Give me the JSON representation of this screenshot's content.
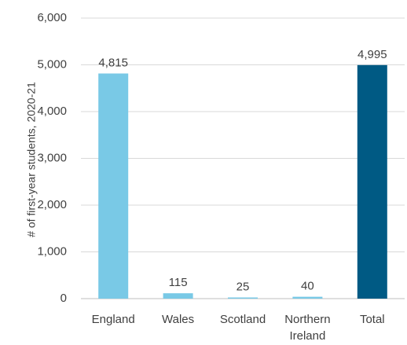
{
  "chart_data": {
    "type": "bar",
    "title": "",
    "xlabel": "",
    "ylabel": "# of first-year students, 2020-21",
    "categories": [
      [
        "England"
      ],
      [
        "Wales"
      ],
      [
        "Scotland"
      ],
      [
        "Northern",
        "Ireland"
      ],
      [
        "Total"
      ]
    ],
    "values": [
      4815,
      115,
      25,
      40,
      4995
    ],
    "value_labels": [
      "4,815",
      "115",
      "25",
      "40",
      "4,995"
    ],
    "bar_colors": [
      "#79c9e6",
      "#79c9e6",
      "#79c9e6",
      "#79c9e6",
      "#005a84"
    ],
    "ylim": [
      0,
      6000
    ],
    "yticks": [
      0,
      1000,
      2000,
      3000,
      4000,
      5000,
      6000
    ],
    "ytick_labels": [
      "0",
      "1,000",
      "2,000",
      "3,000",
      "4,000",
      "5,000",
      "6,000"
    ],
    "grid": true,
    "grid_color": "#d9d9d9",
    "legend": "none"
  }
}
